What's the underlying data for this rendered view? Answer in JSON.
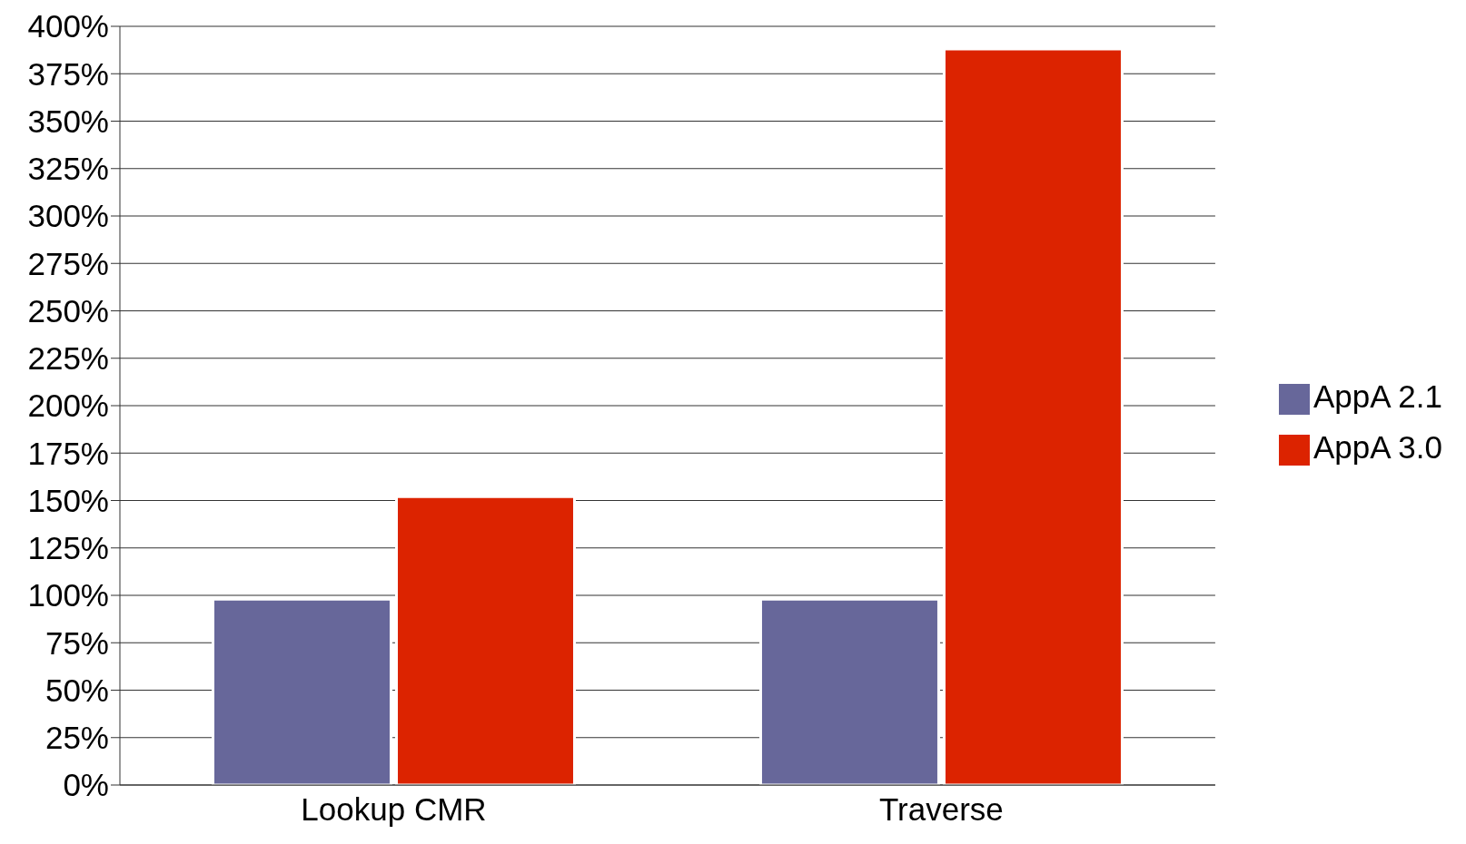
{
  "chart_data": {
    "type": "bar",
    "categories": [
      "Lookup CMR",
      "Traverse"
    ],
    "series": [
      {
        "name": "AppA 2.1",
        "color": "#67679a",
        "values": [
          98,
          98
        ]
      },
      {
        "name": "AppA 3.0",
        "color": "#dc2300",
        "values": [
          152,
          388
        ]
      }
    ],
    "ylim": [
      0,
      400
    ],
    "yticks": [
      {
        "value": 0,
        "label": "0%"
      },
      {
        "value": 25,
        "label": "25%"
      },
      {
        "value": 50,
        "label": "50%"
      },
      {
        "value": 75,
        "label": "75%"
      },
      {
        "value": 100,
        "label": "100%"
      },
      {
        "value": 125,
        "label": "125%"
      },
      {
        "value": 150,
        "label": "150%"
      },
      {
        "value": 175,
        "label": "175%"
      },
      {
        "value": 200,
        "label": "200%"
      },
      {
        "value": 225,
        "label": "225%"
      },
      {
        "value": 250,
        "label": "250%"
      },
      {
        "value": 275,
        "label": "275%"
      },
      {
        "value": 300,
        "label": "300%"
      },
      {
        "value": 325,
        "label": "325%"
      },
      {
        "value": 350,
        "label": "350%"
      },
      {
        "value": 375,
        "label": "375%"
      },
      {
        "value": 400,
        "label": "400%"
      }
    ],
    "grid": "y",
    "legend": "right"
  }
}
